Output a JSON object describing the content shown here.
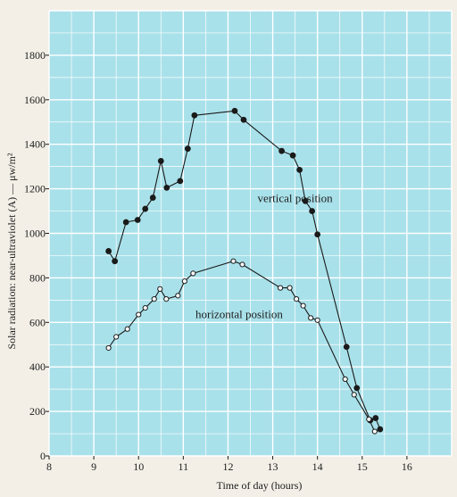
{
  "chart_data": {
    "type": "line",
    "title": "",
    "xlabel": "Time of day (hours)",
    "ylabel": "Solar radiation: near-ultraviolet (A) — μw/m²",
    "xlim": [
      8,
      17
    ],
    "ylim": [
      0,
      2000
    ],
    "x_ticks": [
      8,
      9,
      10,
      11,
      12,
      13,
      14,
      15,
      16
    ],
    "y_ticks": [
      0,
      200,
      400,
      600,
      800,
      1000,
      1200,
      1400,
      1600,
      1800
    ],
    "grid": true,
    "legend": "none",
    "colors": {
      "plot_background": "#a9e1ea",
      "grid": "#ffffff",
      "line": "#1a1a1a",
      "page": "#f3efe6"
    },
    "annotations": [
      {
        "text": "vertical position",
        "x": 13.5,
        "y": 1140
      },
      {
        "text": "horizontal position",
        "x": 12.25,
        "y": 620
      }
    ],
    "series": [
      {
        "marker": "filled-circle",
        "x": [
          9.33,
          9.47,
          9.72,
          9.98,
          10.15,
          10.32,
          10.5,
          10.63,
          10.93,
          11.1,
          11.25,
          12.15,
          12.35,
          13.2,
          13.45,
          13.6,
          13.73,
          13.88,
          14.0,
          14.65,
          14.88,
          15.18,
          15.3,
          15.4
        ],
        "y": [
          920,
          875,
          1050,
          1060,
          1110,
          1160,
          1325,
          1205,
          1235,
          1380,
          1530,
          1550,
          1510,
          1370,
          1350,
          1285,
          1145,
          1100,
          995,
          490,
          305,
          160,
          170,
          120
        ]
      },
      {
        "marker": "open-circle",
        "x": [
          9.33,
          9.5,
          9.75,
          10.0,
          10.15,
          10.35,
          10.48,
          10.62,
          10.88,
          11.03,
          11.22,
          12.12,
          12.32,
          13.17,
          13.38,
          13.53,
          13.68,
          13.85,
          14.0,
          14.62,
          14.82,
          15.15,
          15.28
        ],
        "y": [
          485,
          535,
          570,
          635,
          665,
          705,
          750,
          705,
          720,
          785,
          820,
          875,
          860,
          755,
          755,
          705,
          675,
          620,
          610,
          345,
          275,
          165,
          110
        ]
      }
    ]
  }
}
